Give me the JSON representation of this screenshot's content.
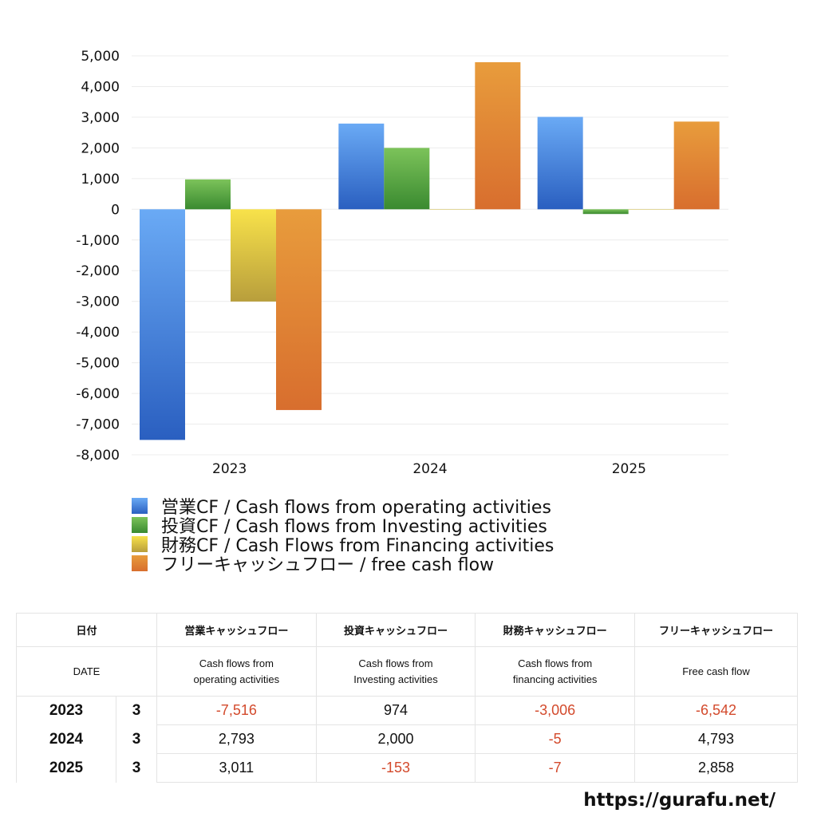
{
  "chart_data": {
    "type": "bar",
    "categories": [
      "2023",
      "2024",
      "2025"
    ],
    "series": [
      {
        "name": "営業CF / Cash flows from operating activities",
        "values": [
          -7516,
          2793,
          3011
        ],
        "colors": [
          "#6aaaf5",
          "#2a5fc0"
        ]
      },
      {
        "name": "投資CF / Cash flows from Investing activities",
        "values": [
          974,
          2000,
          -153
        ],
        "colors": [
          "#7cc35a",
          "#3a8a30"
        ]
      },
      {
        "name": "財務CF / Cash Flows from Financing activities",
        "values": [
          -3006,
          -5,
          -7
        ],
        "colors": [
          "#f8e24a",
          "#b89e3c"
        ]
      },
      {
        "name": "フリーキャッシュフロー / free cash flow",
        "values": [
          -6542,
          4793,
          2858
        ],
        "colors": [
          "#e89c3c",
          "#d86e2e"
        ]
      }
    ],
    "ylim": [
      -8000,
      5000
    ],
    "yticks": [
      "5,000",
      "4,000",
      "3,000",
      "2,000",
      "1,000",
      "0",
      "-1,000",
      "-2,000",
      "-3,000",
      "-4,000",
      "-5,000",
      "-6,000",
      "-7,000",
      "-8,000"
    ],
    "grid": true,
    "legend": "bottom-left"
  },
  "table": {
    "header_jp": [
      "日付",
      "営業キャッシュフロー",
      "投資キャッシュフロー",
      "財務キャッシュフロー",
      "フリーキャッシュフロー"
    ],
    "header_en": [
      "DATE",
      "Cash flows from operating activities",
      "Cash flows from Investing activities",
      "Cash flows from financing activities",
      "Free cash flow"
    ],
    "rows": [
      {
        "year": "2023",
        "month": "3",
        "values": [
          "-7,516",
          "974",
          "-3,006",
          "-6,542"
        ]
      },
      {
        "year": "2024",
        "month": "3",
        "values": [
          "2,793",
          "2,000",
          "-5",
          "4,793"
        ]
      },
      {
        "year": "2025",
        "month": "3",
        "values": [
          "3,011",
          "-153",
          "-7",
          "2,858"
        ]
      }
    ]
  },
  "negative_color": "#d34a2c",
  "site_url": "https://gurafu.net/"
}
